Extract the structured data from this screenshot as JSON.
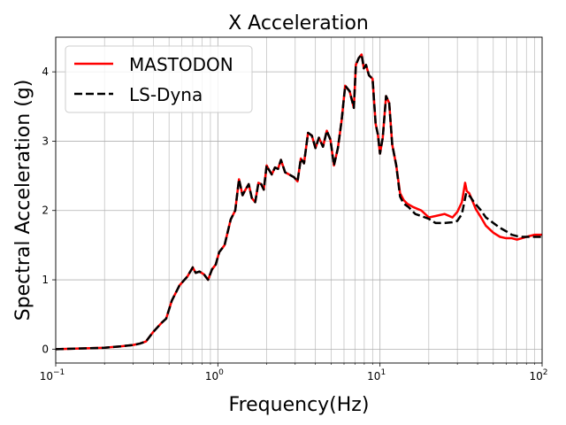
{
  "chart_data": {
    "type": "line",
    "title": "X Acceleration",
    "xlabel": "Frequency(Hz)",
    "ylabel": "Spectral Acceleration (g)",
    "xscale": "log",
    "xlim": [
      0.1,
      100
    ],
    "ylim": [
      -0.2,
      4.5
    ],
    "xticks": [
      {
        "value": 0.1,
        "base": "10",
        "exp": "−1"
      },
      {
        "value": 1,
        "base": "10",
        "exp": "0"
      },
      {
        "value": 10,
        "base": "10",
        "exp": "1"
      },
      {
        "value": 100,
        "base": "10",
        "exp": "2"
      }
    ],
    "yticks": [
      0,
      1,
      2,
      3,
      4
    ],
    "grid": "major and minor",
    "legend_position": "top-left",
    "series": [
      {
        "name": "MASTODON",
        "color": "#ff0000",
        "style": "solid",
        "x": [
          0.1,
          0.2,
          0.25,
          0.3,
          0.33,
          0.36,
          0.4,
          0.45,
          0.48,
          0.52,
          0.58,
          0.65,
          0.7,
          0.73,
          0.77,
          0.82,
          0.87,
          0.92,
          0.97,
          1.02,
          1.1,
          1.2,
          1.28,
          1.35,
          1.42,
          1.48,
          1.55,
          1.62,
          1.7,
          1.78,
          1.85,
          1.92,
          2.0,
          2.05,
          2.15,
          2.25,
          2.35,
          2.45,
          2.6,
          2.75,
          2.95,
          3.1,
          3.25,
          3.4,
          3.6,
          3.8,
          4.0,
          4.2,
          4.45,
          4.7,
          4.95,
          5.2,
          5.5,
          5.8,
          6.1,
          6.5,
          6.9,
          7.1,
          7.4,
          7.7,
          7.95,
          8.2,
          8.55,
          9.0,
          9.4,
          9.7,
          10.0,
          10.4,
          10.9,
          11.4,
          11.9,
          12.6,
          13.3,
          14.0,
          14.7,
          16.0,
          18.0,
          20.0,
          22.0,
          25.0,
          28.0,
          30.0,
          32.0,
          33.5,
          34.3,
          35.5,
          37.0,
          39.0,
          42.0,
          45.0,
          50.0,
          55.0,
          60.0,
          65.0,
          70.0,
          75.0,
          80.0,
          90.0,
          100.0
        ],
        "y": [
          0.0,
          0.02,
          0.04,
          0.06,
          0.08,
          0.11,
          0.25,
          0.38,
          0.44,
          0.7,
          0.92,
          1.05,
          1.18,
          1.1,
          1.12,
          1.08,
          1.0,
          1.15,
          1.22,
          1.4,
          1.5,
          1.87,
          2.0,
          2.45,
          2.22,
          2.3,
          2.38,
          2.18,
          2.12,
          2.4,
          2.38,
          2.3,
          2.65,
          2.6,
          2.52,
          2.62,
          2.6,
          2.73,
          2.55,
          2.52,
          2.48,
          2.42,
          2.75,
          2.68,
          3.12,
          3.08,
          2.9,
          3.05,
          2.92,
          3.15,
          3.02,
          2.65,
          2.9,
          3.3,
          3.8,
          3.72,
          3.48,
          4.1,
          4.2,
          4.25,
          4.05,
          4.1,
          3.95,
          3.9,
          3.25,
          3.1,
          2.82,
          3.05,
          3.65,
          3.55,
          2.95,
          2.65,
          2.25,
          2.15,
          2.1,
          2.05,
          2.0,
          1.9,
          1.92,
          1.95,
          1.9,
          1.98,
          2.12,
          2.4,
          2.28,
          2.25,
          2.15,
          2.02,
          1.9,
          1.78,
          1.68,
          1.62,
          1.6,
          1.6,
          1.58,
          1.6,
          1.62,
          1.65,
          1.65
        ]
      },
      {
        "name": "LS-Dyna",
        "color": "#000000",
        "style": "dashed",
        "x": [
          0.1,
          0.2,
          0.25,
          0.3,
          0.33,
          0.36,
          0.4,
          0.45,
          0.48,
          0.52,
          0.58,
          0.65,
          0.7,
          0.73,
          0.77,
          0.82,
          0.87,
          0.92,
          0.97,
          1.02,
          1.1,
          1.2,
          1.28,
          1.35,
          1.42,
          1.48,
          1.55,
          1.62,
          1.7,
          1.78,
          1.85,
          1.92,
          2.0,
          2.05,
          2.15,
          2.25,
          2.35,
          2.45,
          2.6,
          2.75,
          2.95,
          3.1,
          3.25,
          3.4,
          3.6,
          3.8,
          4.0,
          4.2,
          4.45,
          4.7,
          4.95,
          5.2,
          5.5,
          5.8,
          6.1,
          6.5,
          6.9,
          7.1,
          7.4,
          7.7,
          7.95,
          8.2,
          8.55,
          9.0,
          9.4,
          9.7,
          10.0,
          10.4,
          10.9,
          11.4,
          11.9,
          12.6,
          13.3,
          14.0,
          15.0,
          16.5,
          18.0,
          20.0,
          22.0,
          25.0,
          28.0,
          30.0,
          32.0,
          34.0,
          36.0,
          38.0,
          42.0,
          45.0,
          50.0,
          55.0,
          60.0,
          65.0,
          70.0,
          75.0,
          80.0,
          90.0,
          100.0
        ],
        "y": [
          0.0,
          0.02,
          0.04,
          0.06,
          0.08,
          0.11,
          0.25,
          0.38,
          0.44,
          0.7,
          0.92,
          1.05,
          1.18,
          1.1,
          1.12,
          1.08,
          1.0,
          1.15,
          1.22,
          1.4,
          1.5,
          1.87,
          2.0,
          2.45,
          2.22,
          2.3,
          2.38,
          2.18,
          2.12,
          2.4,
          2.38,
          2.3,
          2.65,
          2.6,
          2.52,
          2.62,
          2.6,
          2.73,
          2.55,
          2.52,
          2.48,
          2.42,
          2.75,
          2.68,
          3.12,
          3.08,
          2.9,
          3.05,
          2.92,
          3.15,
          3.02,
          2.65,
          2.9,
          3.3,
          3.8,
          3.72,
          3.48,
          4.1,
          4.2,
          4.25,
          4.05,
          4.1,
          3.95,
          3.9,
          3.25,
          3.1,
          2.82,
          3.05,
          3.65,
          3.55,
          2.95,
          2.65,
          2.2,
          2.1,
          2.05,
          1.95,
          1.92,
          1.88,
          1.82,
          1.82,
          1.83,
          1.85,
          1.95,
          2.25,
          2.2,
          2.12,
          2.0,
          1.9,
          1.82,
          1.75,
          1.7,
          1.65,
          1.63,
          1.62,
          1.62,
          1.62,
          1.62
        ]
      }
    ]
  }
}
